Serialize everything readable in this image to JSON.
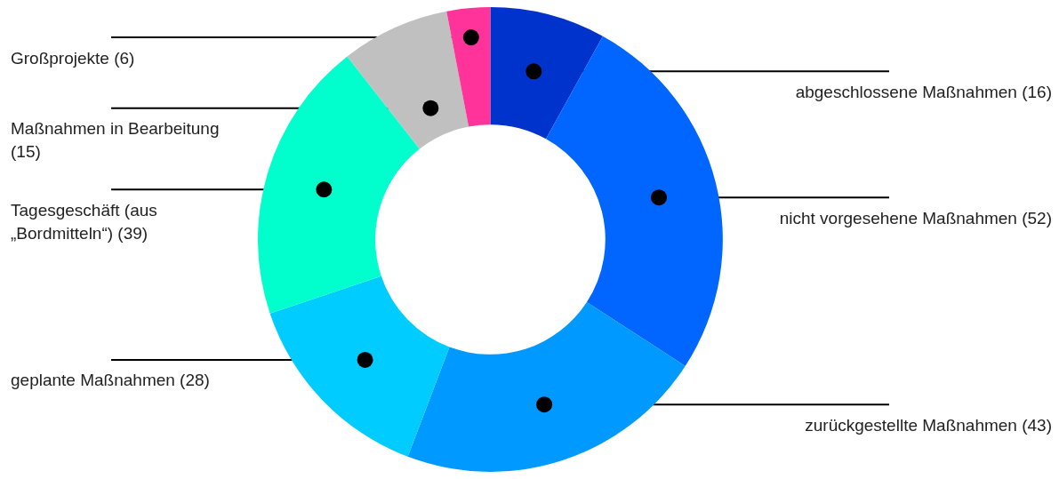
{
  "chart_data": {
    "type": "donut",
    "categories": [
      "abgeschlossene Maßnahmen (16)",
      "nicht vorgesehene Maßnahmen (52)",
      "zurückgestellte Maßnahmen (43)",
      "geplante Maßnahmen (28)",
      "Tagesgeschäft (aus „Bordmitteln“) (39)",
      "Maßnahmen in Bearbeitung (15)",
      "Großprojekte (6)"
    ],
    "values": [
      16,
      52,
      43,
      28,
      39,
      15,
      6
    ],
    "colors": [
      "#0033cc",
      "#0066ff",
      "#0099ff",
      "#00ccff",
      "#00ffcc",
      "#c0c0c0",
      "#ff3399"
    ],
    "legend": false
  }
}
